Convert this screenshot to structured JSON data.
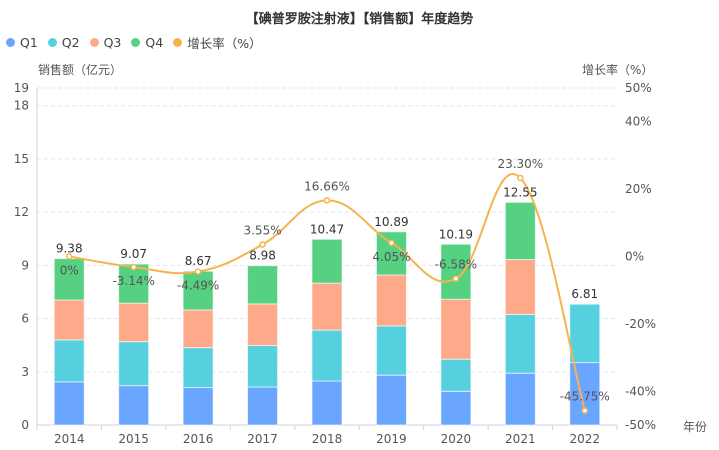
{
  "chart_data": {
    "type": "bar",
    "title": "【碘普罗胺注射液】【销售额】年度趋势",
    "ylabel": "销售额（亿元）",
    "y2label": "增长率（%）",
    "xlabel": "年份",
    "categories": [
      "2014",
      "2015",
      "2016",
      "2017",
      "2018",
      "2019",
      "2020",
      "2021",
      "2022"
    ],
    "ylim": [
      0,
      19
    ],
    "yticks": [
      0,
      3,
      6,
      9,
      12,
      15,
      18,
      19
    ],
    "y2lim": [
      -50,
      50
    ],
    "y2ticks": [
      -50,
      -40,
      -20,
      0,
      20,
      40,
      50
    ],
    "y2tick_labels": [
      "-50%",
      "-40%",
      "-20%",
      "0%",
      "20%",
      "40%",
      "50%"
    ],
    "grid": true,
    "legend_position": "top-left",
    "series": [
      {
        "name": "Q1",
        "type": "bar",
        "stack": "total",
        "color": "#6aa5ff",
        "values": [
          2.43,
          2.22,
          2.11,
          2.14,
          2.48,
          2.81,
          1.9,
          2.92,
          3.52
        ]
      },
      {
        "name": "Q2",
        "type": "bar",
        "stack": "total",
        "color": "#56d0df",
        "values": [
          2.37,
          2.48,
          2.25,
          2.34,
          2.87,
          2.78,
          1.81,
          3.31,
          3.29
        ]
      },
      {
        "name": "Q3",
        "type": "bar",
        "stack": "total",
        "color": "#ffa98b",
        "values": [
          2.25,
          2.17,
          2.13,
          2.35,
          2.65,
          2.87,
          3.38,
          3.1,
          null
        ]
      },
      {
        "name": "Q4",
        "type": "bar",
        "stack": "total",
        "color": "#55d181",
        "values": [
          2.33,
          2.2,
          2.18,
          2.15,
          2.47,
          2.43,
          3.1,
          3.22,
          null
        ]
      },
      {
        "name": "增长率（%）",
        "type": "line",
        "axis": "right",
        "color": "#f6b34d",
        "values": [
          0,
          -3.14,
          -4.49,
          3.55,
          16.66,
          4.05,
          -6.58,
          23.3,
          -45.75
        ]
      }
    ],
    "totals": [
      9.38,
      9.07,
      8.67,
      8.98,
      10.47,
      10.89,
      10.19,
      12.55,
      6.81
    ],
    "total_labels": [
      "9.38",
      "9.07",
      "8.67",
      "8.98",
      "10.47",
      "10.89",
      "10.19",
      "12.55",
      "6.81"
    ],
    "growth_labels": [
      "0%",
      "-3.14%",
      "-4.49%",
      "3.55%",
      "16.66%",
      "4.05%",
      "-6.58%",
      "23.30%",
      "-45.75%"
    ]
  }
}
